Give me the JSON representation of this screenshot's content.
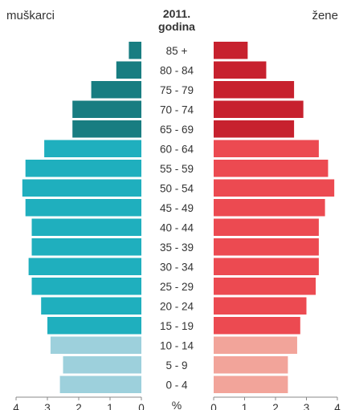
{
  "chart_data": {
    "type": "bar",
    "title_line1": "2011.",
    "title_line2": "godina",
    "left_label": "muškarci",
    "right_label": "žene",
    "center_axis_label": "%",
    "categories": [
      "85 +",
      "80 - 84",
      "75 - 79",
      "70 - 74",
      "65 - 69",
      "60 - 64",
      "55 - 59",
      "50 - 54",
      "45 - 49",
      "40 - 44",
      "35 - 39",
      "30 - 34",
      "25 - 29",
      "20 - 24",
      "15 - 19",
      "10 - 14",
      "5 - 9",
      "0 - 4"
    ],
    "series": [
      {
        "name": "muškarci",
        "values": [
          0.4,
          0.8,
          1.6,
          2.2,
          2.2,
          3.1,
          3.7,
          3.8,
          3.7,
          3.5,
          3.5,
          3.6,
          3.5,
          3.2,
          3.0,
          2.9,
          2.5,
          2.6
        ]
      },
      {
        "name": "žene",
        "values": [
          1.1,
          1.7,
          2.6,
          2.9,
          2.6,
          3.4,
          3.7,
          3.9,
          3.6,
          3.4,
          3.4,
          3.4,
          3.3,
          3.0,
          2.8,
          2.7,
          2.4,
          2.4
        ]
      }
    ],
    "left_ticks": [
      "4",
      "3",
      "2",
      "1",
      "0"
    ],
    "right_ticks": [
      "0",
      "1",
      "2",
      "3",
      "4"
    ],
    "xlim": [
      0,
      4
    ],
    "colors": {
      "male_old": "#187d81",
      "male_mid": "#1fafbe",
      "male_young": "#9dd0dc",
      "female_old": "#c7212e",
      "female_mid": "#ec4a51",
      "female_young": "#f2a49a",
      "text": "#333333",
      "axis": "#888888"
    }
  }
}
